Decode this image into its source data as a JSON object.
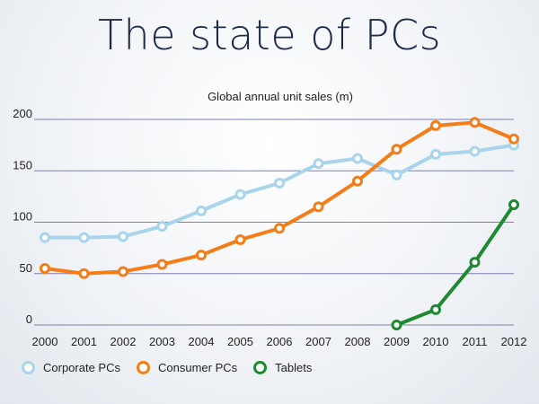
{
  "slide": {
    "title": "The state of PCs"
  },
  "chart_data": {
    "type": "line",
    "title": "Global annual unit sales (m)",
    "xlabel": "",
    "ylabel": "",
    "x": [
      2000,
      2001,
      2002,
      2003,
      2004,
      2005,
      2006,
      2007,
      2008,
      2009,
      2010,
      2011,
      2012
    ],
    "ylim": [
      0,
      200
    ],
    "yticks": [
      0,
      50,
      100,
      150,
      200
    ],
    "grid": true,
    "legend_position": "bottom-left",
    "series": [
      {
        "name": "Corporate PCs",
        "color": "#a8d4ec",
        "values": [
          85,
          85,
          86,
          96,
          111,
          127,
          138,
          157,
          162,
          146,
          166,
          169,
          175
        ]
      },
      {
        "name": "Consumer PCs",
        "color": "#f47d17",
        "values": [
          55,
          50,
          52,
          59,
          68,
          83,
          94,
          115,
          140,
          171,
          194,
          197,
          181
        ]
      },
      {
        "name": "Tablets",
        "color": "#1e8a30",
        "values": [
          null,
          null,
          null,
          null,
          null,
          null,
          null,
          null,
          null,
          0,
          15,
          61,
          117
        ]
      }
    ]
  }
}
